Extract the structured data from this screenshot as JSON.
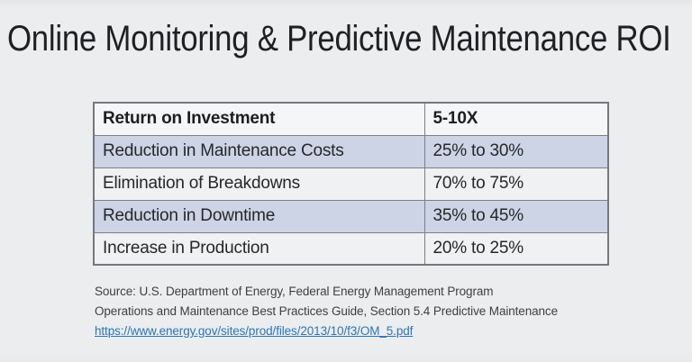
{
  "slide": {
    "title": "Online Monitoring & Predictive Maintenance ROI"
  },
  "table": {
    "header": {
      "label": "Return on Investment",
      "value": "5-10X"
    },
    "rows": [
      {
        "label": "Reduction in Maintenance Costs",
        "value": "25% to 30%"
      },
      {
        "label": "Elimination of Breakdowns",
        "value": "70% to 75%"
      },
      {
        "label": "Reduction in Downtime",
        "value": "35% to 45%"
      },
      {
        "label": "Increase in Production",
        "value": "20% to 25%"
      }
    ]
  },
  "source": {
    "line1": "Source: U.S. Department of Energy, Federal Energy Management Program",
    "line2": "Operations and Maintenance Best Practices Guide, Section 5.4 Predictive Maintenance",
    "link": "https://www.energy.gov/sites/prod/files/2013/10/f3/OM_5.pdf"
  },
  "colors": {
    "background": "#ebedef",
    "header_bg": "#f5f6f7",
    "row_blue": "#ccd4e6",
    "row_light": "#f0f1f3",
    "border": "#7c7f84",
    "title_text": "#1f2023",
    "body_text": "#272727",
    "source_text": "#3d3f42",
    "link": "#2e75b6"
  }
}
